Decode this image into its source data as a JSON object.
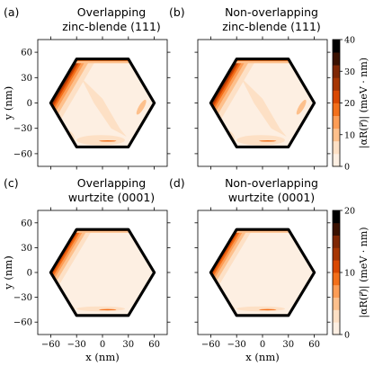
{
  "chart_data": {
    "type": "heatmap",
    "panels": [
      {
        "label": "(a)",
        "title_lines": [
          "Overlapping",
          "zinc-blende (111)"
        ],
        "colorbar_group": "top"
      },
      {
        "label": "(b)",
        "title_lines": [
          "Non-overlapping",
          "zinc-blende (111)"
        ],
        "colorbar_group": "top"
      },
      {
        "label": "(c)",
        "title_lines": [
          "Overlapping",
          "wurtzite (0001)"
        ],
        "colorbar_group": "bottom"
      },
      {
        "label": "(d)",
        "title_lines": [
          "Non-overlapping",
          "wurtzite (0001)"
        ],
        "colorbar_group": "bottom"
      }
    ],
    "xlabel": "x (nm)",
    "ylabel": "y (nm)",
    "x_ticks": [
      "−60",
      "−30",
      "0",
      "30",
      "60"
    ],
    "y_ticks": [
      "60",
      "30",
      "0",
      "−30",
      "−60"
    ],
    "xlim": [
      -75,
      75
    ],
    "ylim": [
      -75,
      75
    ],
    "colorbars": [
      {
        "group": "top",
        "label": "|αR(r⃗)| (meV · nm)",
        "range": [
          0,
          40
        ],
        "ticks": [
          "40",
          "30",
          "20",
          "10",
          "0"
        ]
      },
      {
        "group": "bottom",
        "label": "|αR(r⃗)| (meV · nm)",
        "range": [
          0,
          20
        ],
        "ticks": [
          "20",
          "10",
          "0"
        ]
      }
    ],
    "colormap": [
      "#fdefe2",
      "#fde0c5",
      "#fdc08c",
      "#fd9d56",
      "#f3701b",
      "#d94801",
      "#a63603",
      "#7f2704",
      "#3a1100",
      "#000000"
    ]
  }
}
